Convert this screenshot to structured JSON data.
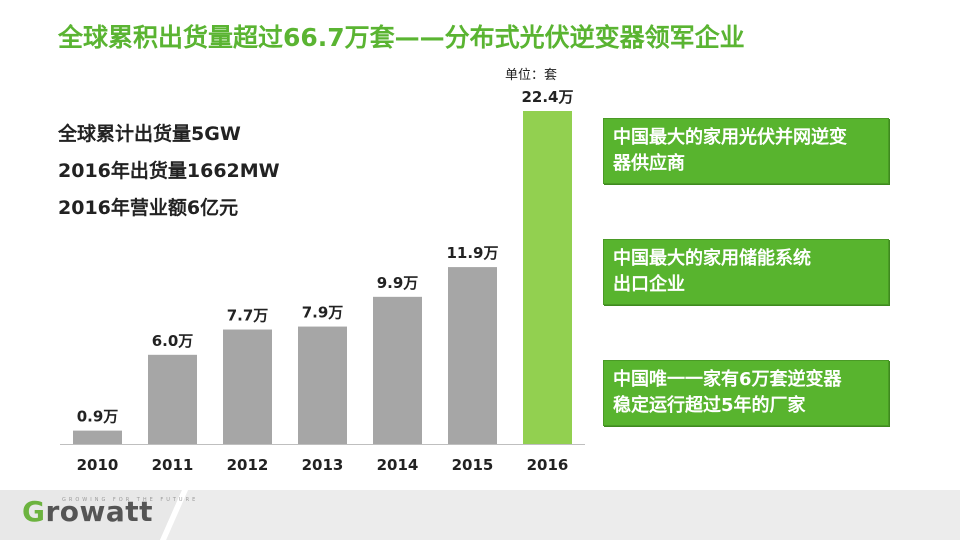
{
  "title": "全球累积出货量超过66.7万套——分布式光伏逆变器领军企业",
  "stats": [
    "全球累计出货量5GW",
    "2016年出货量1662MW",
    "2016年营业额6亿元"
  ],
  "unit_label": "单位：套",
  "badges": [
    {
      "line1": "中国最大的家用光伏并网逆变",
      "line2": "器供应商"
    },
    {
      "line1": "中国最大的家用储能系统",
      "line2": "出口企业"
    },
    {
      "line1": "中国唯一一家有6万套逆变器",
      "line2": "稳定运行超过5年的厂家"
    }
  ],
  "logo": {
    "g": "G",
    "rest": "rowatt",
    "tagline": "GROWING FOR THE FUTURE"
  },
  "colors": {
    "accent": "#5ab432",
    "bar": "#a6a6a6",
    "highlight_bar": "#92d050"
  },
  "chart_data": {
    "type": "bar",
    "categories": [
      "2010",
      "2011",
      "2012",
      "2013",
      "2014",
      "2015",
      "2016"
    ],
    "values": [
      0.9,
      6.0,
      7.7,
      7.9,
      9.9,
      11.9,
      22.4
    ],
    "value_labels": [
      "0.9万",
      "6.0万",
      "7.7万",
      "7.9万",
      "9.9万",
      "11.9万",
      "22.4万"
    ],
    "highlight_index": 6,
    "ylim": [
      0,
      22.4
    ],
    "grid": false,
    "legend": "none"
  }
}
